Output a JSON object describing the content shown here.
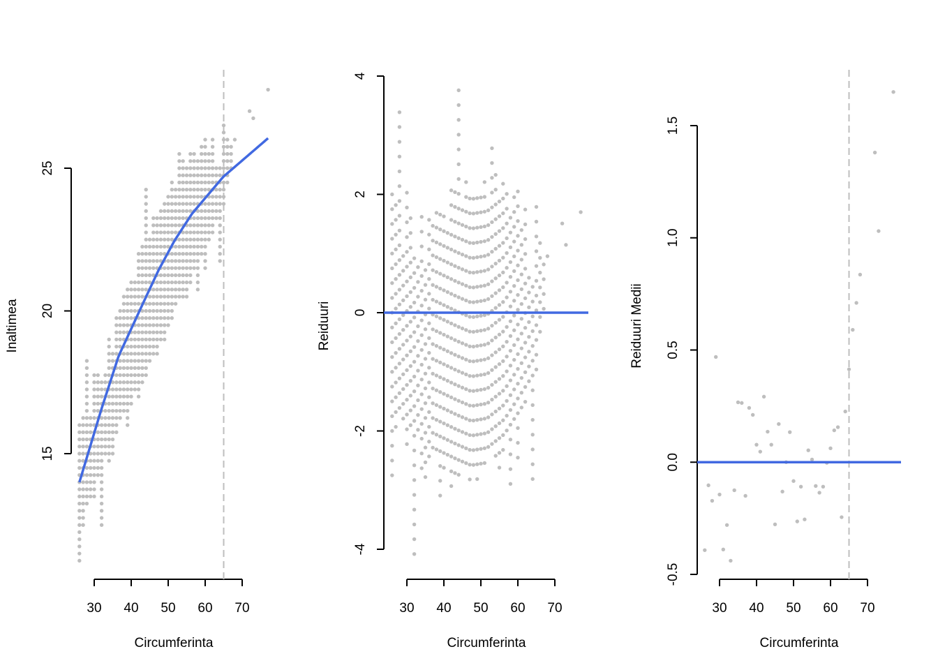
{
  "colors": {
    "points": "#bebebe",
    "fit": "#4169e1",
    "ref_line": "#bebebe"
  },
  "chart_data": [
    {
      "type": "scatter",
      "title": "",
      "xlabel": "Circumferinta",
      "ylabel": "Inaltimea",
      "xticks": [
        30,
        40,
        50,
        60,
        70
      ],
      "yticks": [
        15,
        20,
        25
      ],
      "y_grid_step": 0.25,
      "columns_note": "points at each integer x, y from ymin to ymax in steps of y_grid_step",
      "columns": [
        [
          26,
          11.25,
          16.0
        ],
        [
          27,
          12.5,
          16.25
        ],
        [
          28,
          13.25,
          18.25
        ],
        [
          29,
          13.5,
          16.25
        ],
        [
          30,
          13.5,
          17.75
        ],
        [
          31,
          14.25,
          17.75
        ],
        [
          32,
          12.5,
          17.5
        ],
        [
          33,
          15.0,
          17.75
        ],
        [
          34,
          14.75,
          19.0
        ],
        [
          35,
          15.0,
          18.5
        ],
        [
          36,
          15.75,
          19.75
        ],
        [
          37,
          16.25,
          20.0
        ],
        [
          38,
          16.5,
          20.5
        ],
        [
          39,
          16.0,
          20.75
        ],
        [
          40,
          16.75,
          21.0
        ],
        [
          41,
          17.25,
          21.0
        ],
        [
          42,
          17.0,
          22.0
        ],
        [
          43,
          17.5,
          22.25
        ],
        [
          44,
          17.75,
          24.25
        ],
        [
          45,
          18.25,
          22.5
        ],
        [
          46,
          18.5,
          23.25
        ],
        [
          47,
          18.5,
          23.25
        ],
        [
          48,
          19.0,
          23.5
        ],
        [
          49,
          19.0,
          23.75
        ],
        [
          50,
          19.5,
          24.0
        ],
        [
          51,
          19.75,
          24.5
        ],
        [
          52,
          20.25,
          24.25
        ],
        [
          53,
          20.5,
          25.5
        ],
        [
          54,
          20.5,
          25.25
        ],
        [
          55,
          20.5,
          25.0
        ],
        [
          56,
          21.0,
          25.5
        ],
        [
          57,
          21.5,
          25.5
        ],
        [
          58,
          20.75,
          25.25
        ],
        [
          59,
          22.0,
          25.75
        ],
        [
          60,
          21.5,
          26.0
        ],
        [
          61,
          22.5,
          25.5
        ],
        [
          62,
          22.75,
          26.0
        ],
        [
          63,
          23.25,
          25.0
        ],
        [
          64,
          21.75,
          25.0
        ],
        [
          65,
          23.75,
          26.5
        ],
        [
          66,
          24.5,
          26.0
        ],
        [
          67,
          25.0,
          25.75
        ],
        [
          68,
          26.0,
          26.0
        ],
        [
          72,
          27.0,
          27.0
        ],
        [
          73,
          26.75,
          26.75
        ],
        [
          77,
          27.75,
          27.75
        ]
      ],
      "fit_curve": [
        [
          26,
          14.0
        ],
        [
          31.9,
          16.54
        ],
        [
          36.6,
          18.42
        ],
        [
          43.6,
          20.38
        ],
        [
          47.4,
          21.43
        ],
        [
          51.7,
          22.46
        ],
        [
          56.4,
          23.4
        ],
        [
          64.9,
          24.7
        ],
        [
          77,
          26.05
        ]
      ],
      "vline_x": 65
    },
    {
      "type": "scatter",
      "title": "",
      "xlabel": "Circumferinta",
      "ylabel": "Reiduuri",
      "xticks": [
        30,
        40,
        50,
        60,
        70
      ],
      "yticks": [
        -4,
        -2,
        0,
        2,
        4
      ],
      "ylim": [
        -4,
        4
      ],
      "derived_from": "residuals of panel 1 points from fit_curve",
      "hline_y": 0
    },
    {
      "type": "scatter",
      "title": "",
      "xlabel": "Circumferinta",
      "ylabel": "Reiduuri Medii",
      "xticks": [
        30,
        40,
        50,
        60,
        70
      ],
      "yticks": [
        "-0.5",
        "0.0",
        "0.5",
        "1.0",
        "1.5"
      ],
      "ylim": [
        -0.5,
        1.5
      ],
      "points": [
        [
          26,
          -0.392
        ],
        [
          27,
          -0.103
        ],
        [
          28,
          -0.172
        ],
        [
          29,
          0.469
        ],
        [
          30,
          -0.144
        ],
        [
          31,
          -0.389
        ],
        [
          32,
          -0.28
        ],
        [
          33,
          -0.439
        ],
        [
          34,
          -0.125
        ],
        [
          35,
          0.267
        ],
        [
          36,
          0.264
        ],
        [
          37,
          -0.15
        ],
        [
          38,
          0.242
        ],
        [
          39,
          0.211
        ],
        [
          40,
          0.078
        ],
        [
          41,
          0.047
        ],
        [
          42,
          0.292
        ],
        [
          43,
          0.136
        ],
        [
          44,
          0.078
        ],
        [
          45,
          -0.277
        ],
        [
          46,
          0.17
        ],
        [
          47,
          -0.131
        ],
        [
          48,
          0.0
        ],
        [
          49,
          0.134
        ],
        [
          50,
          -0.084
        ],
        [
          51,
          -0.264
        ],
        [
          52,
          -0.109
        ],
        [
          53,
          -0.255
        ],
        [
          54,
          0.053
        ],
        [
          55,
          0.012
        ],
        [
          56,
          -0.106
        ],
        [
          57,
          -0.136
        ],
        [
          58,
          -0.109
        ],
        [
          59,
          -0.003
        ],
        [
          60,
          0.062
        ],
        [
          61,
          0.142
        ],
        [
          62,
          0.156
        ],
        [
          63,
          -0.245
        ],
        [
          64,
          0.226
        ],
        [
          65,
          0.414
        ],
        [
          66,
          0.59
        ],
        [
          67,
          0.71
        ],
        [
          68,
          0.836
        ],
        [
          72,
          1.38
        ],
        [
          73,
          1.03
        ],
        [
          77,
          1.65
        ]
      ],
      "hline_y": 0,
      "vline_x": 65
    }
  ]
}
